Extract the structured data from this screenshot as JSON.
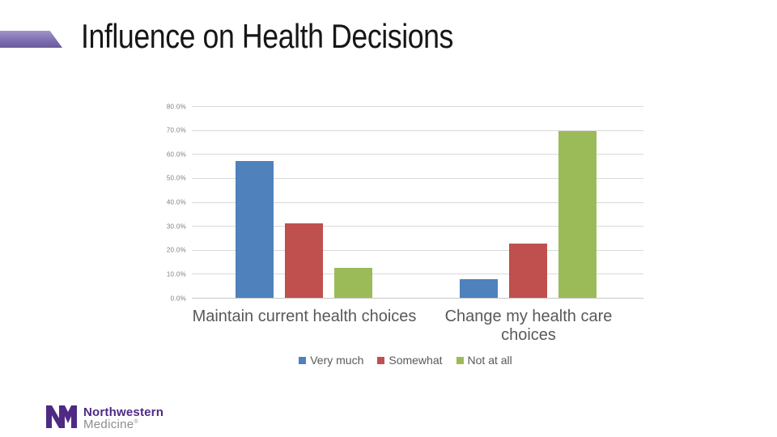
{
  "slide": {
    "title": "Influence on Health Decisions"
  },
  "chart_data": {
    "type": "bar",
    "title": "Influence on Health Decisions",
    "categories": [
      "Maintain current health choices",
      "Change my health care choices"
    ],
    "series": [
      {
        "name": "Very much",
        "color": "#4F81BD",
        "values": [
          56.9,
          7.7
        ]
      },
      {
        "name": "Somewhat",
        "color": "#C0504D",
        "values": [
          31.0,
          22.6
        ]
      },
      {
        "name": "Not at all",
        "color": "#9BBB59",
        "values": [
          12.5,
          69.7
        ]
      }
    ],
    "ylim": [
      0,
      80
    ],
    "ytick_step": 10,
    "yticks": [
      "0.0%",
      "10.0%",
      "20.0%",
      "30.0%",
      "40.0%",
      "50.0%",
      "60.0%",
      "70.0%",
      "80.0%"
    ],
    "grid": true,
    "legend_position": "bottom",
    "xlabel": "",
    "ylabel": ""
  },
  "logo": {
    "monogram": "NM",
    "line1": "Northwestern",
    "line2": "Medicine",
    "registered_mark": "®",
    "purple": "#4E2A84",
    "gray": "#8b8d8e"
  },
  "colors": {
    "accent_shape": "#7f6fb2",
    "gridline": "#d9d9d9",
    "axis_text": "#7f7f7f",
    "label_text": "#595959"
  }
}
